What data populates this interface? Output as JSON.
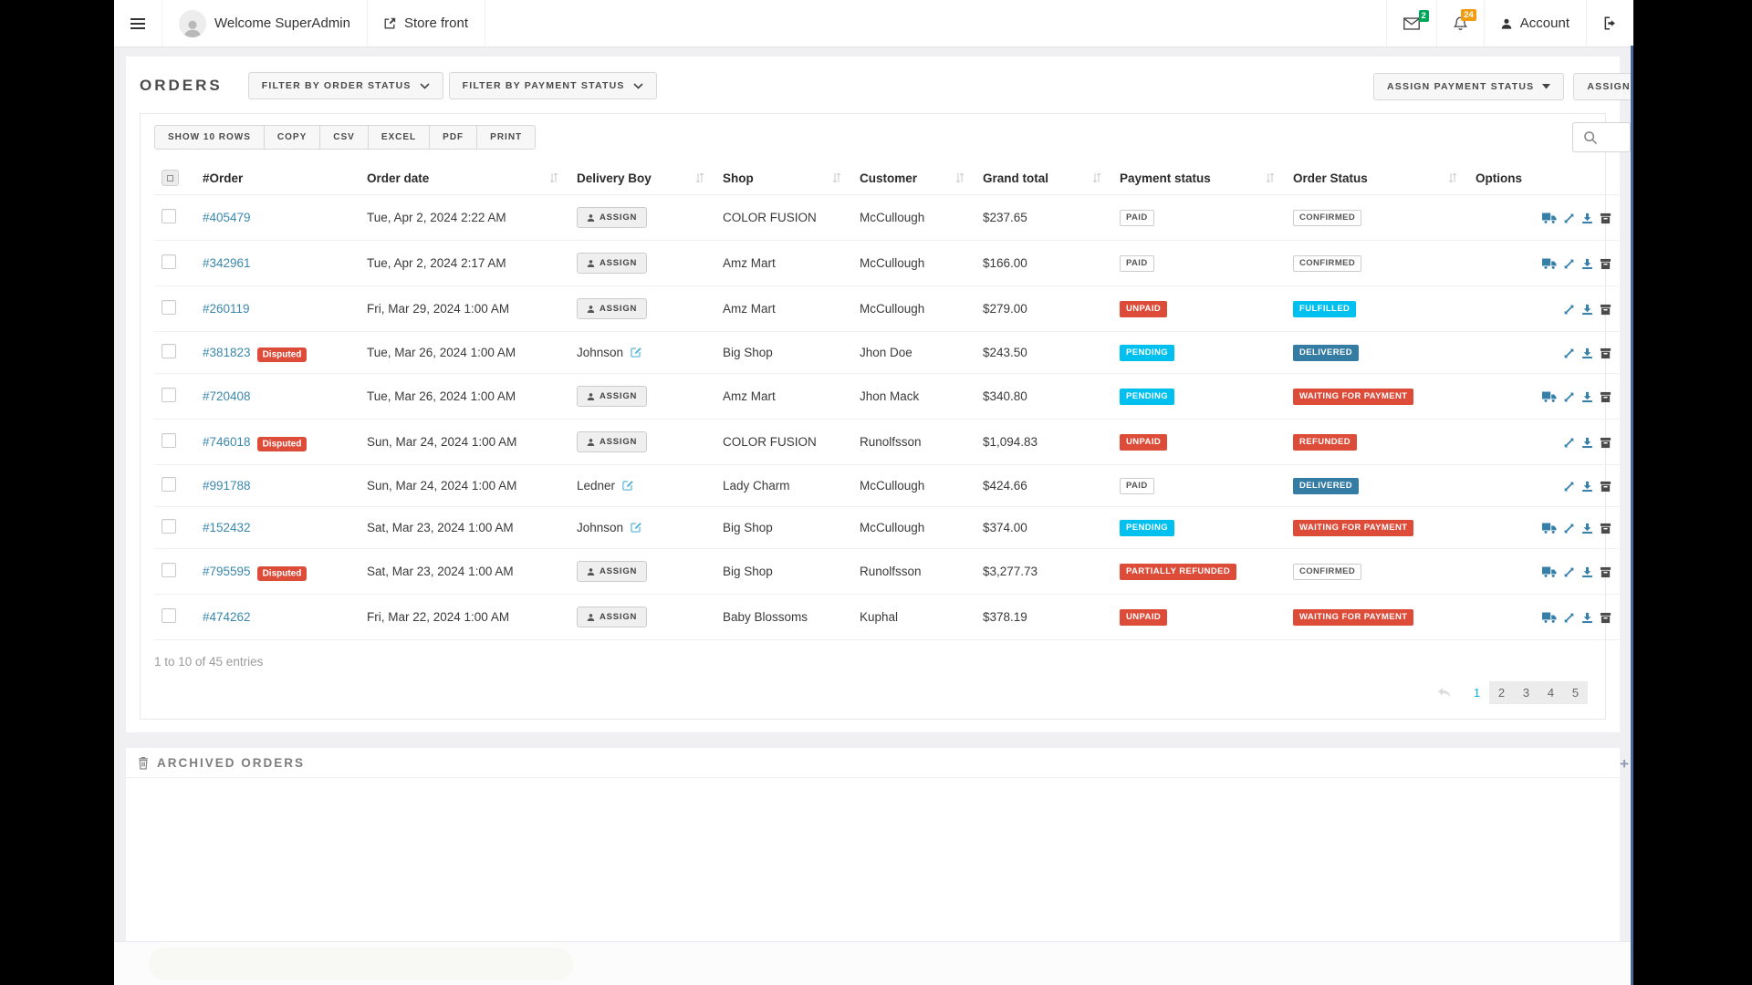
{
  "navbar": {
    "welcome": "Welcome SuperAdmin",
    "store_front_label": "Store front",
    "messages_count": "2",
    "notifications_count": "24",
    "account_label": "Account"
  },
  "page": {
    "title": "ORDERS",
    "filter_order_status_label": "FILTER BY ORDER STATUS",
    "filter_payment_status_label": "FILTER BY PAYMENT STATUS",
    "assign_payment_status_label": "ASSIGN PAYMENT STATUS",
    "assign_order_status_label": "ASSIGN ORDER STATUS"
  },
  "toolbar": {
    "buttons": [
      "SHOW 10 ROWS",
      "COPY",
      "CSV",
      "EXCEL",
      "PDF",
      "PRINT"
    ]
  },
  "table": {
    "assign_label": "ASSIGN",
    "disputed_label": "Disputed",
    "columns": [
      {
        "key": "select",
        "label": "",
        "type": "checkbox",
        "sortable": false
      },
      {
        "key": "order",
        "label": "#Order",
        "sortable": false
      },
      {
        "key": "date",
        "label": "Order date",
        "sortable": true
      },
      {
        "key": "delivery",
        "label": "Delivery Boy",
        "sortable": true
      },
      {
        "key": "shop",
        "label": "Shop",
        "sortable": true
      },
      {
        "key": "customer",
        "label": "Customer",
        "sortable": true
      },
      {
        "key": "total",
        "label": "Grand total",
        "sortable": true
      },
      {
        "key": "payment",
        "label": "Payment status",
        "sortable": true
      },
      {
        "key": "status",
        "label": "Order Status",
        "sortable": true
      },
      {
        "key": "options",
        "label": "Options",
        "sortable": false
      }
    ],
    "rows": [
      {
        "id": "#405479",
        "disputed": false,
        "date": "Tue, Apr 2, 2024 2:22 AM",
        "delivery": {
          "type": "assign"
        },
        "shop": "COLOR FUSION",
        "customer": "McCullough",
        "total": "$237.65",
        "payment": {
          "label": "PAID",
          "style": "white"
        },
        "status": {
          "label": "CONFIRMED",
          "style": "white"
        },
        "options": [
          "truck",
          "expand",
          "download",
          "archive"
        ]
      },
      {
        "id": "#342961",
        "disputed": false,
        "date": "Tue, Apr 2, 2024 2:17 AM",
        "delivery": {
          "type": "assign"
        },
        "shop": "Amz Mart",
        "customer": "McCullough",
        "total": "$166.00",
        "payment": {
          "label": "PAID",
          "style": "white"
        },
        "status": {
          "label": "CONFIRMED",
          "style": "white"
        },
        "options": [
          "truck",
          "expand",
          "download",
          "archive"
        ]
      },
      {
        "id": "#260119",
        "disputed": false,
        "date": "Fri, Mar 29, 2024 1:00 AM",
        "delivery": {
          "type": "assign"
        },
        "shop": "Amz Mart",
        "customer": "McCullough",
        "total": "$279.00",
        "payment": {
          "label": "UNPAID",
          "style": "red"
        },
        "status": {
          "label": "FULFILLED",
          "style": "cyan"
        },
        "options": [
          "expand",
          "download",
          "archive"
        ]
      },
      {
        "id": "#381823",
        "disputed": true,
        "date": "Tue, Mar 26, 2024 1:00 AM",
        "delivery": {
          "type": "assigned",
          "name": "Johnson"
        },
        "shop": "Big Shop",
        "customer": "Jhon Doe",
        "total": "$243.50",
        "payment": {
          "label": "PENDING",
          "style": "cyan"
        },
        "status": {
          "label": "DELIVERED",
          "style": "blue"
        },
        "options": [
          "expand",
          "download",
          "archive"
        ]
      },
      {
        "id": "#720408",
        "disputed": false,
        "date": "Tue, Mar 26, 2024 1:00 AM",
        "delivery": {
          "type": "assign"
        },
        "shop": "Amz Mart",
        "customer": "Jhon Mack",
        "total": "$340.80",
        "payment": {
          "label": "PENDING",
          "style": "cyan"
        },
        "status": {
          "label": "WAITING FOR PAYMENT",
          "style": "red"
        },
        "options": [
          "truck",
          "expand",
          "download",
          "archive"
        ]
      },
      {
        "id": "#746018",
        "disputed": true,
        "date": "Sun, Mar 24, 2024 1:00 AM",
        "delivery": {
          "type": "assign"
        },
        "shop": "COLOR FUSION",
        "customer": "Runolfsson",
        "total": "$1,094.83",
        "payment": {
          "label": "UNPAID",
          "style": "red"
        },
        "status": {
          "label": "REFUNDED",
          "style": "red"
        },
        "options": [
          "expand",
          "download",
          "archive"
        ]
      },
      {
        "id": "#991788",
        "disputed": false,
        "date": "Sun, Mar 24, 2024 1:00 AM",
        "delivery": {
          "type": "assigned",
          "name": "Ledner"
        },
        "shop": "Lady Charm",
        "customer": "McCullough",
        "total": "$424.66",
        "payment": {
          "label": "PAID",
          "style": "white"
        },
        "status": {
          "label": "DELIVERED",
          "style": "blue"
        },
        "options": [
          "expand",
          "download",
          "archive"
        ]
      },
      {
        "id": "#152432",
        "disputed": false,
        "date": "Sat, Mar 23, 2024 1:00 AM",
        "delivery": {
          "type": "assigned",
          "name": "Johnson"
        },
        "shop": "Big Shop",
        "customer": "McCullough",
        "total": "$374.00",
        "payment": {
          "label": "PENDING",
          "style": "cyan"
        },
        "status": {
          "label": "WAITING FOR PAYMENT",
          "style": "red"
        },
        "options": [
          "truck",
          "expand",
          "download",
          "archive"
        ]
      },
      {
        "id": "#795595",
        "disputed": true,
        "date": "Sat, Mar 23, 2024 1:00 AM",
        "delivery": {
          "type": "assign"
        },
        "shop": "Big Shop",
        "customer": "Runolfsson",
        "total": "$3,277.73",
        "payment": {
          "label": "PARTIALLY REFUNDED",
          "style": "red"
        },
        "status": {
          "label": "CONFIRMED",
          "style": "white"
        },
        "options": [
          "truck",
          "expand",
          "download",
          "archive"
        ]
      },
      {
        "id": "#474262",
        "disputed": false,
        "date": "Fri, Mar 22, 2024 1:00 AM",
        "delivery": {
          "type": "assign"
        },
        "shop": "Baby Blossoms",
        "customer": "Kuphal",
        "total": "$378.19",
        "payment": {
          "label": "UNPAID",
          "style": "red"
        },
        "status": {
          "label": "WAITING FOR PAYMENT",
          "style": "red"
        },
        "options": [
          "truck",
          "expand",
          "download",
          "archive"
        ]
      }
    ]
  },
  "footer": {
    "entries_info": "1 to 10 of 45 entries",
    "pages": [
      "1",
      "2",
      "3",
      "4",
      "5"
    ],
    "active_page": "1"
  },
  "archived": {
    "label": "ARCHIVED ORDERS",
    "expand_symbol": "+"
  },
  "icons": {
    "hamburger-icon": "three bars",
    "avatar": "person silhouette",
    "external-link-icon": "square with arrow",
    "envelope-icon": "mail outline",
    "bell-icon": "notification bell",
    "user-icon": "person filled",
    "logout-icon": "sign out",
    "search-icon": "magnifier",
    "sort-icon": "up/down arrows",
    "chevron-down-icon": "thin chevron",
    "caret-down-icon": "solid triangle",
    "person-icon": "assign user",
    "edit-icon": "pencil in square",
    "truck-icon": "delivery truck",
    "expand-icon": "diagonal resize arrows",
    "download-icon": "arrow into tray",
    "archive-icon": "storage box",
    "trash-icon": "trash can",
    "prev-page-icon": "curved back arrow",
    "plus-icon": "expand section"
  },
  "colors": {
    "badge_red": "#dd4b39",
    "badge_cyan": "#00c0ef",
    "badge_blue": "#357ca5",
    "link_blue": "#3a87ad",
    "nav_badge_green": "#00a65a",
    "nav_badge_orange": "#f39c12"
  }
}
